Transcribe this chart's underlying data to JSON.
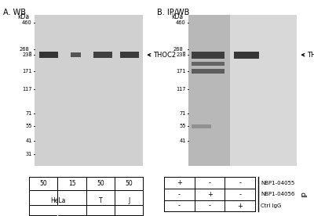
{
  "fig_width": 4.0,
  "fig_height": 2.76,
  "dpi": 100,
  "bg_color": "#ffffff",
  "panel_A_title": "A. WB",
  "panel_B_title": "B. IP/WB",
  "kda_label": "kDa",
  "ladder_marks_A": [
    460,
    268,
    238,
    171,
    117,
    71,
    55,
    41,
    31
  ],
  "ladder_marks_B": [
    460,
    268,
    238,
    171,
    117,
    71,
    55,
    41
  ],
  "thoc2_label": "THOC2",
  "gel_A_bg": "#d0d0d0",
  "gel_B_left_bg": "#b8b8b8",
  "gel_B_right_bg": "#d8d8d8",
  "band_color": "#202020",
  "table_A_cols": [
    "50",
    "15",
    "50",
    "50"
  ],
  "table_B_rows": [
    [
      "NBP1-04055",
      "+",
      "-",
      "-"
    ],
    [
      "NBP1-04056",
      "-",
      "+",
      "-"
    ],
    [
      "Ctrl IgG",
      "-",
      "-",
      "+"
    ]
  ],
  "ip_label": "IP",
  "kda_min": 25,
  "kda_max": 520,
  "thoc2_kda": 238
}
